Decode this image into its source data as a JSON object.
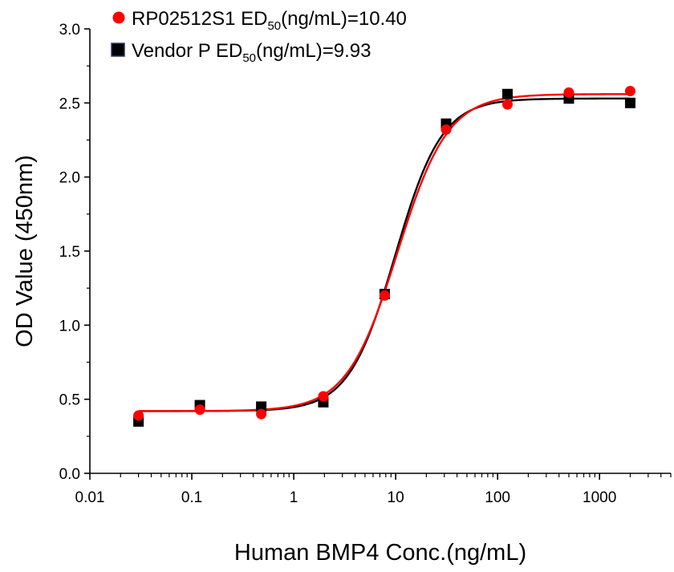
{
  "chart_data": {
    "type": "scatter",
    "xlabel": "Human BMP4 Conc.(ng/mL)",
    "ylabel": "OD Value (450nm)",
    "xscale": "log",
    "xlim": [
      0.01,
      5000
    ],
    "ylim": [
      0,
      3.0
    ],
    "xticks": [
      0.01,
      0.1,
      1,
      10,
      100,
      1000
    ],
    "xtick_labels": [
      "0.01",
      "0.1",
      "1",
      "10",
      "100",
      "1000"
    ],
    "yticks": [
      0,
      0.5,
      1.0,
      1.5,
      2.0,
      2.5,
      3.0
    ],
    "ytick_labels": [
      "0.0",
      "0.5",
      "1.0",
      "1.5",
      "2.0",
      "2.5",
      "3.0"
    ],
    "grid": false,
    "legend_position": "top-left",
    "x": [
      0.03,
      0.12,
      0.48,
      1.95,
      7.8,
      31.25,
      125,
      500,
      2000
    ],
    "series": [
      {
        "label_main": "RP02512S1 ED",
        "label_sub": "50",
        "label_tail": "(ng/mL)=10.40",
        "marker": "circle",
        "color": "#ff0000",
        "values": [
          0.39,
          0.43,
          0.4,
          0.52,
          1.2,
          2.32,
          2.49,
          2.57,
          2.58
        ],
        "fit": {
          "bottom": 0.42,
          "top": 2.56,
          "ec50": 10.4,
          "hill": 1.75
        }
      },
      {
        "label_main": "Vendor P ED",
        "label_sub": "50",
        "label_tail": "(ng/mL)=9.93",
        "marker": "square",
        "color": "#000000",
        "values": [
          0.35,
          0.46,
          0.45,
          0.48,
          1.21,
          2.36,
          2.56,
          2.53,
          2.5
        ],
        "fit": {
          "bottom": 0.42,
          "top": 2.53,
          "ec50": 9.93,
          "hill": 1.9
        }
      }
    ]
  }
}
